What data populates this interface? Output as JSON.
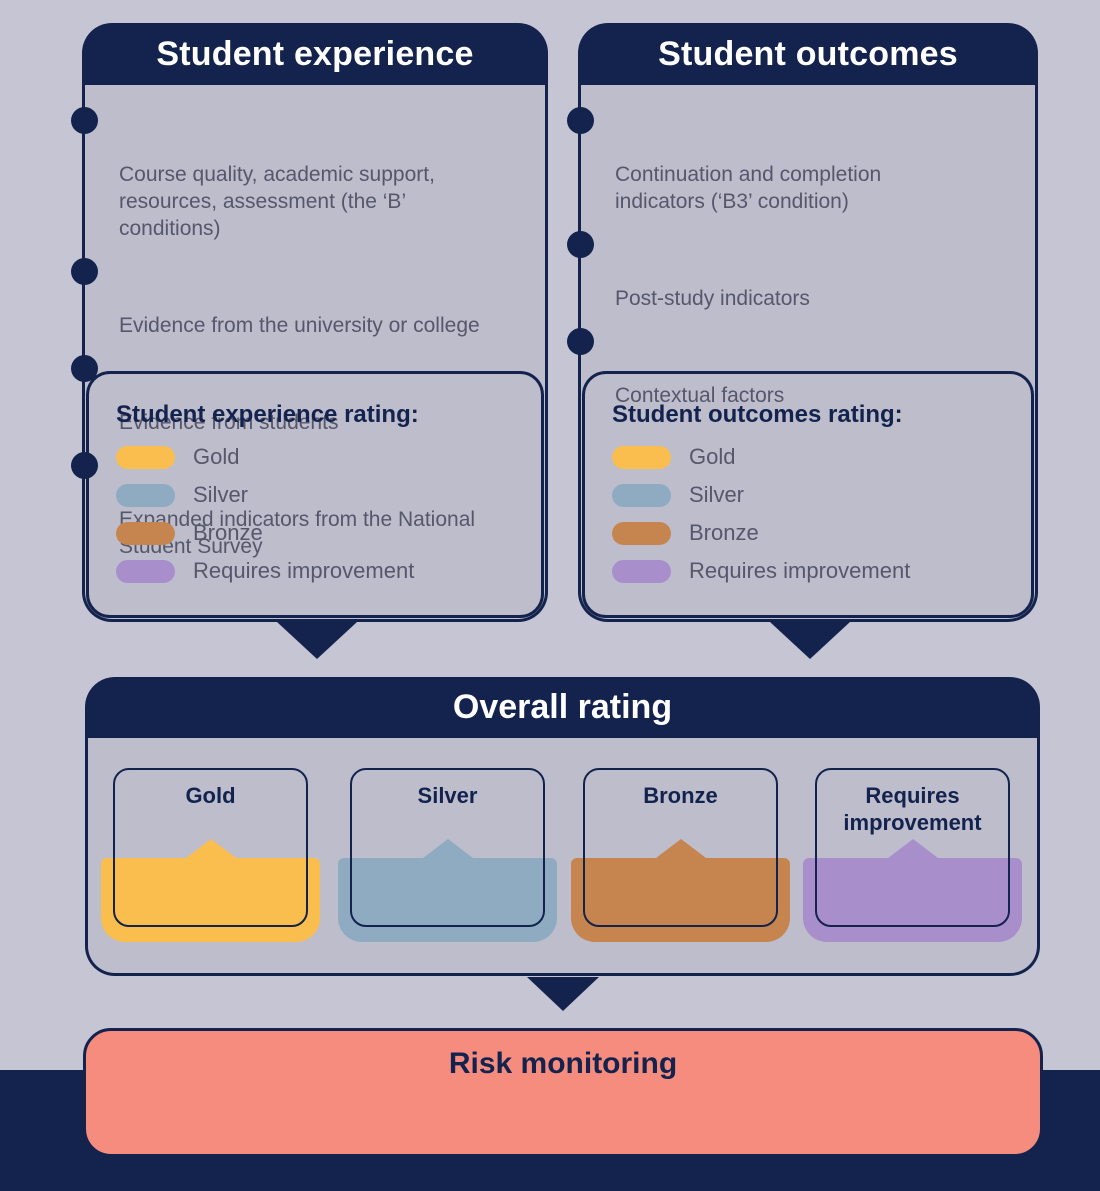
{
  "colors": {
    "navy": "#13234E",
    "page_background": "#C6C5D3",
    "panel_background": "#BDBDCC",
    "gold": "#F9BE4D",
    "silver": "#8EABC1",
    "bronze": "#C6854F",
    "purple": "#A98ECC",
    "salmon": "#F68C7E",
    "body_text": "#55576B"
  },
  "panels": [
    {
      "title": "Student experience",
      "bullets": [
        "Course quality, academic support,\nresources, assessment (the ‘B’\nconditions)",
        "Evidence from the university or college",
        "Evidence from students",
        "Expanded indicators from the National\nStudent Survey"
      ],
      "rating_title": "Student experience rating:",
      "ratings": [
        {
          "label": "Gold",
          "color": "#F9BE4D"
        },
        {
          "label": "Silver",
          "color": "#8EABC1"
        },
        {
          "label": "Bronze",
          "color": "#C6854F"
        },
        {
          "label": "Requires improvement",
          "color": "#A98ECC"
        }
      ]
    },
    {
      "title": "Student outcomes",
      "bullets": [
        "Continuation and completion\nindicators (‘B3’ condition)",
        "Post-study indicators",
        "Contextual factors"
      ],
      "rating_title": "Student outcomes rating:",
      "ratings": [
        {
          "label": "Gold",
          "color": "#F9BE4D"
        },
        {
          "label": "Silver",
          "color": "#8EABC1"
        },
        {
          "label": "Bronze",
          "color": "#C6854F"
        },
        {
          "label": "Requires improvement",
          "color": "#A98ECC"
        }
      ]
    }
  ],
  "overall": {
    "title": "Overall rating",
    "cards": [
      {
        "label": "Gold",
        "color": "#F9BE4D"
      },
      {
        "label": "Silver",
        "color": "#8EABC1"
      },
      {
        "label": "Bronze",
        "color": "#C6854F"
      },
      {
        "label": "Requires\nimprovement",
        "color": "#A98ECC"
      }
    ]
  },
  "risk": {
    "title": "Risk monitoring",
    "color": "#F68C7E"
  }
}
